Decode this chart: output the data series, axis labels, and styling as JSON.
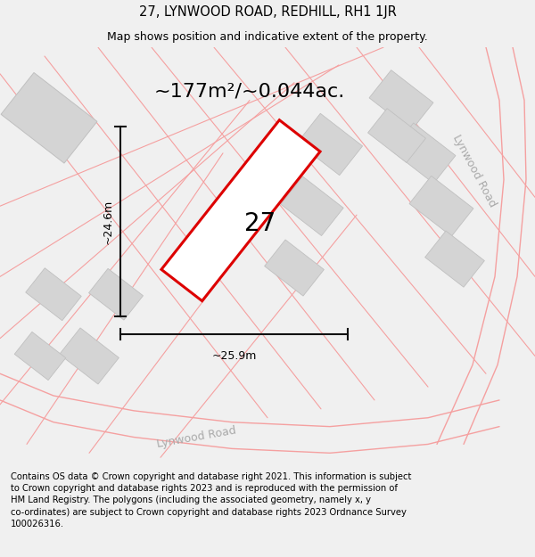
{
  "title_line1": "27, LYNWOOD ROAD, REDHILL, RH1 1JR",
  "title_line2": "Map shows position and indicative extent of the property.",
  "area_label": "~177m²/~0.044ac.",
  "plot_number": "27",
  "dim_height": "~24.6m",
  "dim_width": "~25.9m",
  "road_label_bottom": "Lynwood Road",
  "road_label_right": "Lynwood Road",
  "footer_text": "Contains OS data © Crown copyright and database right 2021. This information is subject to Crown copyright and database rights 2023 and is reproduced with the permission of HM Land Registry. The polygons (including the associated geometry, namely x, y co-ordinates) are subject to Crown copyright and database rights 2023 Ordnance Survey 100026316.",
  "bg_color": "#f0f0f0",
  "map_bg_color": "#ffffff",
  "plot_outline_color": "#dd0000",
  "road_line_color": "#f5a0a0",
  "building_color": "#d4d4d4",
  "building_outline": "#c0c0c0",
  "dim_line_color": "#111111",
  "title_fontsize": 10.5,
  "subtitle_fontsize": 9,
  "area_fontsize": 16,
  "plot_label_fontsize": 20,
  "dim_fontsize": 9,
  "road_label_fontsize": 9,
  "footer_fontsize": 7.2
}
